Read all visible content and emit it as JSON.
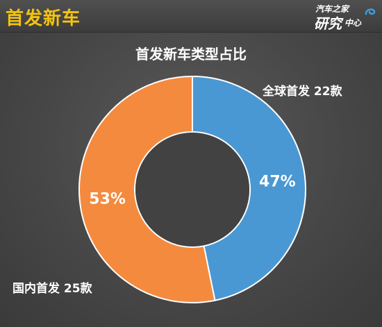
{
  "header": {
    "title": "首发新车"
  },
  "logo": {
    "line1": "汽车之家",
    "line2": "研究",
    "line3": "中心"
  },
  "colors": {
    "title": "#f2c40f",
    "series_0": "#4a98d3",
    "series_1": "#f48a3e",
    "hole": "#424242"
  },
  "chart_data": {
    "type": "pie",
    "title": "首发新车类型占比",
    "donut": true,
    "slices": [
      {
        "label": "全球首发 22款",
        "value": 22,
        "percent_label": "47%"
      },
      {
        "label": "国内首发 25款",
        "value": 25,
        "percent_label": "53%"
      }
    ]
  }
}
